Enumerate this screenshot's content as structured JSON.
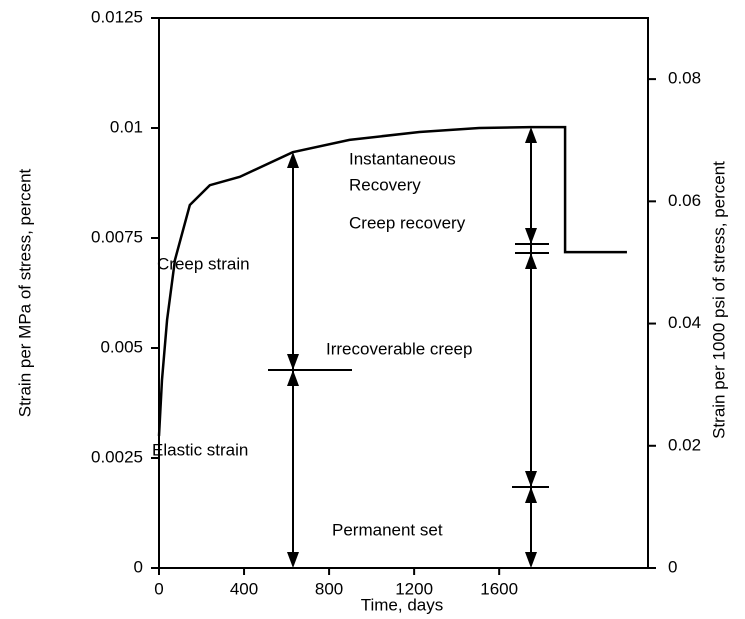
{
  "chart_data": {
    "type": "line",
    "x_label": "Time, days",
    "y_label": "Strain per MPa of stress, percent",
    "y2_label": "Strain per 1000 psi of stress, percent",
    "x": [
      0,
      14,
      38,
      75,
      145,
      239,
      380,
      629,
      896,
      1225,
      1506,
      1746,
      1910,
      1910,
      2201
    ],
    "series": [
      {
        "name": "Strain",
        "color": "#000000",
        "values": [
          0.003,
          0.00427,
          0.00564,
          0.007,
          0.00825,
          0.0087,
          0.00889,
          0.00945,
          0.00973,
          0.00991,
          0.01,
          0.01002,
          0.01002,
          0.00718,
          0.00718
        ]
      }
    ],
    "xlim": [
      0,
      2300
    ],
    "xticks": [
      0,
      400,
      800,
      1200,
      1600
    ],
    "ylim": [
      0,
      0.0125
    ],
    "yticks": [
      0,
      0.0025,
      0.005,
      0.0075,
      0.01,
      0.0125
    ],
    "y2lim": [
      0,
      0.09
    ],
    "y2ticks": [
      0,
      0.02,
      0.04,
      0.06,
      0.08
    ],
    "annotations": [
      "Instantaneous",
      "Recovery",
      "Creep recovery",
      "Creep strain",
      "Irrecoverable creep",
      "Elastic strain",
      "Permanent set"
    ]
  }
}
